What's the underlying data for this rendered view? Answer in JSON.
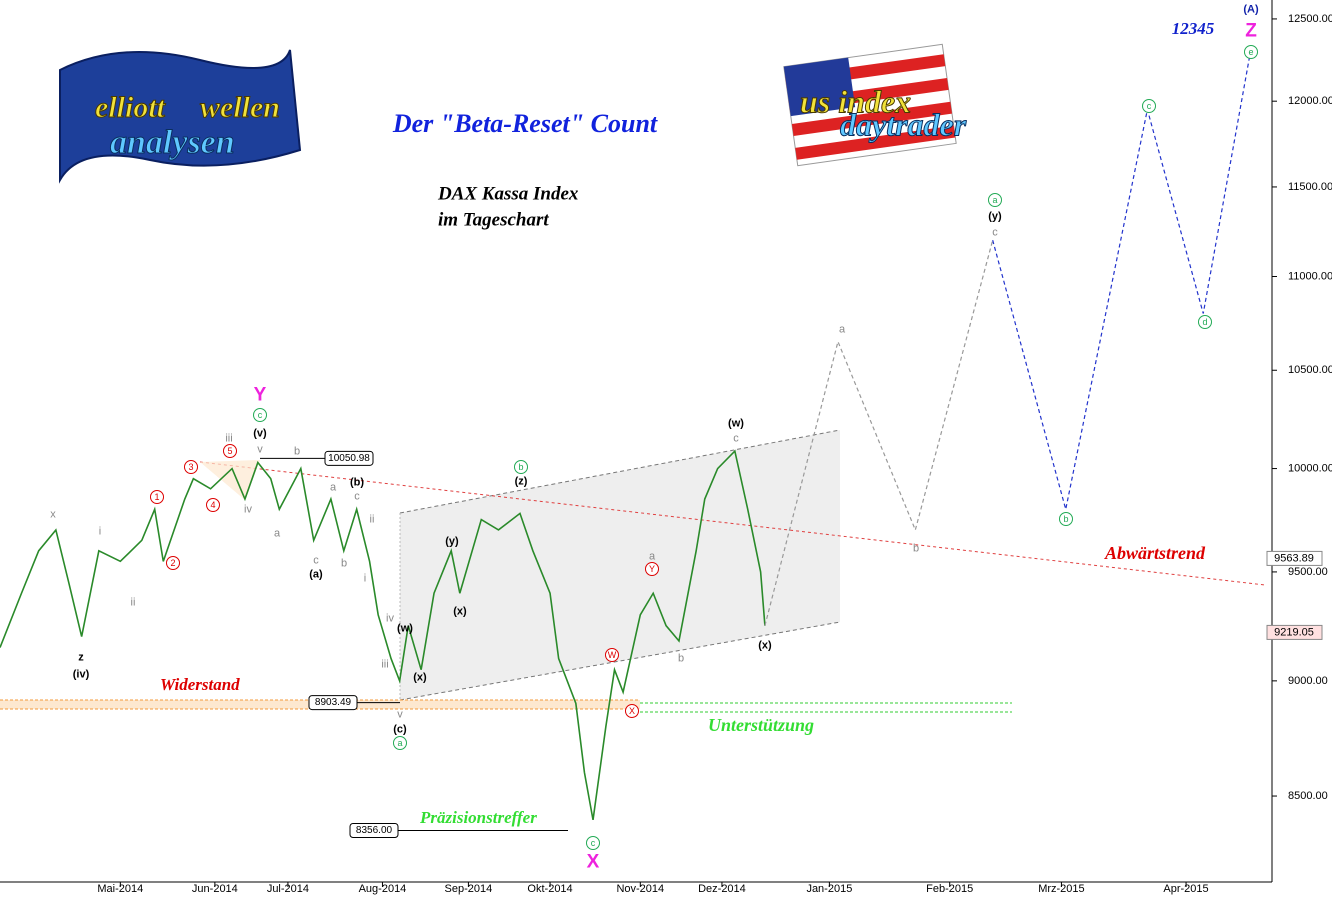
{
  "chart_data": {
    "type": "line",
    "title": "Der \"Beta-Reset\" Count",
    "subtitle": [
      "DAX Kassa Index",
      "im Tageschart"
    ],
    "log_scale": true,
    "xlim": [
      0,
      296
    ],
    "xticks": [
      {
        "value": 28,
        "label": "Mai-2014"
      },
      {
        "value": 50,
        "label": "Jun-2014"
      },
      {
        "value": 67,
        "label": "Jul-2014"
      },
      {
        "value": 89,
        "label": "Aug-2014"
      },
      {
        "value": 109,
        "label": "Sep-2014"
      },
      {
        "value": 128,
        "label": "Okt-2014"
      },
      {
        "value": 149,
        "label": "Nov-2014"
      },
      {
        "value": 168,
        "label": "Dez-2014"
      },
      {
        "value": 193,
        "label": "Jan-2015"
      },
      {
        "value": 221,
        "label": "Feb-2015"
      },
      {
        "value": 247,
        "label": "Mrz-2015"
      },
      {
        "value": 276,
        "label": "Apr-2015"
      }
    ],
    "ylim": [
      8145,
      12618
    ],
    "yticks": [
      {
        "value": 8500,
        "label": "8500.00"
      },
      {
        "value": 9000,
        "label": "9000.00"
      },
      {
        "value": 9500,
        "label": "9500.00"
      },
      {
        "value": 10000,
        "label": "10000.00"
      },
      {
        "value": 10500,
        "label": "10500.00"
      },
      {
        "value": 11000,
        "label": "11000.00"
      },
      {
        "value": 11500,
        "label": "11500.00"
      },
      {
        "value": 12000,
        "label": "12000.00"
      },
      {
        "value": 12500,
        "label": "12500.00"
      }
    ],
    "series": [
      {
        "color": "#2a8a2a",
        "dashed": false,
        "x": [
          0,
          5,
          9,
          13,
          16,
          19,
          23,
          28,
          33,
          36,
          38,
          43,
          45,
          49,
          54,
          57,
          60,
          63,
          65,
          70,
          73,
          77,
          80,
          83,
          86,
          88,
          91,
          93,
          95,
          98,
          101,
          105,
          107,
          112,
          116,
          121,
          124,
          128,
          130,
          134,
          136,
          138,
          141,
          143,
          145,
          149,
          152,
          155,
          158,
          162,
          164,
          167,
          171,
          174,
          177,
          178
        ],
        "values": [
          9150,
          9400,
          9600,
          9700,
          9450,
          9200,
          9600,
          9550,
          9650,
          9800,
          9550,
          9850,
          9950,
          9900,
          10000,
          9850,
          10030,
          9950,
          9800,
          10000,
          9650,
          9850,
          9600,
          9800,
          9550,
          9300,
          9100,
          9000,
          9250,
          9050,
          9400,
          9600,
          9400,
          9750,
          9700,
          9780,
          9600,
          9400,
          9100,
          8900,
          8600,
          8400,
          8800,
          9050,
          8950,
          9300,
          9400,
          9250,
          9180,
          9600,
          9850,
          10000,
          10087,
          9800,
          9500,
          9250
        ]
      },
      {
        "color": "#999999",
        "dashed": true,
        "x": [
          178,
          195,
          213,
          231
        ],
        "values": [
          9250,
          10650,
          9700,
          11200
        ]
      },
      {
        "color": "#2233cc",
        "dashed": true,
        "x": [
          231,
          248,
          267,
          280,
          291
        ],
        "values": [
          11200,
          9800,
          11950,
          10800,
          12300
        ]
      }
    ],
    "price_labels": [
      {
        "value": 10050.98,
        "label": "10050.98"
      },
      {
        "value": 8903.49,
        "label": "8903.49"
      },
      {
        "value": 8356,
        "label": "8356.00"
      }
    ],
    "axis_markers": [
      {
        "value": 9563.89,
        "label": "9563.89",
        "color": "#ffffff"
      },
      {
        "value": 9219.05,
        "label": "9219.05",
        "color": "#ffe0e0"
      }
    ],
    "annotations": [
      {
        "text": "Widerstand",
        "color": "#dd0000"
      },
      {
        "text": "Unterstützung",
        "color": "#33dd33"
      },
      {
        "text": "Präzisionstreffer",
        "color": "#33dd33"
      },
      {
        "text": "Abwärtstrend",
        "color": "#dd0000"
      },
      {
        "text": "12345",
        "color": "#1122cc"
      }
    ],
    "logos": [
      [
        "elliott",
        "wellen",
        "analysen"
      ],
      [
        "us index",
        "daytrader"
      ]
    ],
    "wave_labels": [
      {
        "text": "x",
        "color": "#888888",
        "circled": false
      },
      {
        "text": "z",
        "color": "#000000",
        "circled": false
      },
      {
        "text": "(iv)",
        "color": "#000000",
        "circled": false
      },
      {
        "text": "i",
        "color": "#888888",
        "circled": false
      },
      {
        "text": "ii",
        "color": "#888888",
        "circled": false
      },
      {
        "text": "1",
        "color": "#dd0000",
        "circled": true
      },
      {
        "text": "2",
        "color": "#dd0000",
        "circled": true
      },
      {
        "text": "3",
        "color": "#dd0000",
        "circled": true
      },
      {
        "text": "4",
        "color": "#dd0000",
        "circled": true
      },
      {
        "text": "5",
        "color": "#dd0000",
        "circled": true
      },
      {
        "text": "iii",
        "color": "#888888",
        "circled": false
      },
      {
        "text": "iv",
        "color": "#888888",
        "circled": false
      },
      {
        "text": "v",
        "color": "#888888",
        "circled": false
      },
      {
        "text": "b",
        "color": "#888888",
        "circled": false
      },
      {
        "text": "a",
        "color": "#888888",
        "circled": false
      },
      {
        "text": "Y",
        "color": "#ee22dd",
        "circled": false
      },
      {
        "text": "c",
        "color": "#22aa55",
        "circled": true
      },
      {
        "text": "(v)",
        "color": "#000000",
        "circled": false
      },
      {
        "text": "a",
        "color": "#888888",
        "circled": false
      },
      {
        "text": "c",
        "color": "#888888",
        "circled": false
      },
      {
        "text": "(a)",
        "color": "#000000",
        "circled": false
      },
      {
        "text": "b",
        "color": "#888888",
        "circled": false
      },
      {
        "text": "(b)",
        "color": "#000000",
        "circled": false
      },
      {
        "text": "c",
        "color": "#888888",
        "circled": false
      },
      {
        "text": "ii",
        "color": "#888888",
        "circled": false
      },
      {
        "text": "i",
        "color": "#888888",
        "circled": false
      },
      {
        "text": "iv",
        "color": "#888888",
        "circled": false
      },
      {
        "text": "iii",
        "color": "#888888",
        "circled": false
      },
      {
        "text": "(w)",
        "color": "#000000",
        "circled": false
      },
      {
        "text": "(x)",
        "color": "#000000",
        "circled": false
      },
      {
        "text": "v",
        "color": "#888888",
        "circled": false
      },
      {
        "text": "(c)",
        "color": "#000000",
        "circled": false
      },
      {
        "text": "a",
        "color": "#22aa55",
        "circled": true
      },
      {
        "text": "(y)",
        "color": "#000000",
        "circled": false
      },
      {
        "text": "(x)",
        "color": "#000000",
        "circled": false
      },
      {
        "text": "b",
        "color": "#22aa55",
        "circled": true
      },
      {
        "text": "(z)",
        "color": "#000000",
        "circled": false
      },
      {
        "text": "c",
        "color": "#22aa55",
        "circled": true
      },
      {
        "text": "X",
        "color": "#ee22dd",
        "circled": false
      },
      {
        "text": "W",
        "color": "#dd0000",
        "circled": true
      },
      {
        "text": "X",
        "color": "#dd0000",
        "circled": true
      },
      {
        "text": "a",
        "color": "#888888",
        "circled": false
      },
      {
        "text": "Y",
        "color": "#dd0000",
        "circled": true
      },
      {
        "text": "b",
        "color": "#888888",
        "circled": false
      },
      {
        "text": "(w)",
        "color": "#000000",
        "circled": false
      },
      {
        "text": "c",
        "color": "#888888",
        "circled": false
      },
      {
        "text": "(x)",
        "color": "#000000",
        "circled": false
      },
      {
        "text": "a",
        "color": "#888888",
        "circled": false
      },
      {
        "text": "b",
        "color": "#888888",
        "circled": false
      },
      {
        "text": "a",
        "color": "#22aa55",
        "circled": true
      },
      {
        "text": "(y)",
        "color": "#000000",
        "circled": false
      },
      {
        "text": "c",
        "color": "#888888",
        "circled": false
      },
      {
        "text": "b",
        "color": "#22aa55",
        "circled": true
      },
      {
        "text": "c",
        "color": "#22aa55",
        "circled": true
      },
      {
        "text": "d",
        "color": "#22aa55",
        "circled": true
      },
      {
        "text": "(A)",
        "color": "#1122aa",
        "circled": false
      },
      {
        "text": "Z",
        "color": "#ee22dd",
        "circled": false
      },
      {
        "text": "e",
        "color": "#22aa55",
        "circled": true
      }
    ]
  }
}
